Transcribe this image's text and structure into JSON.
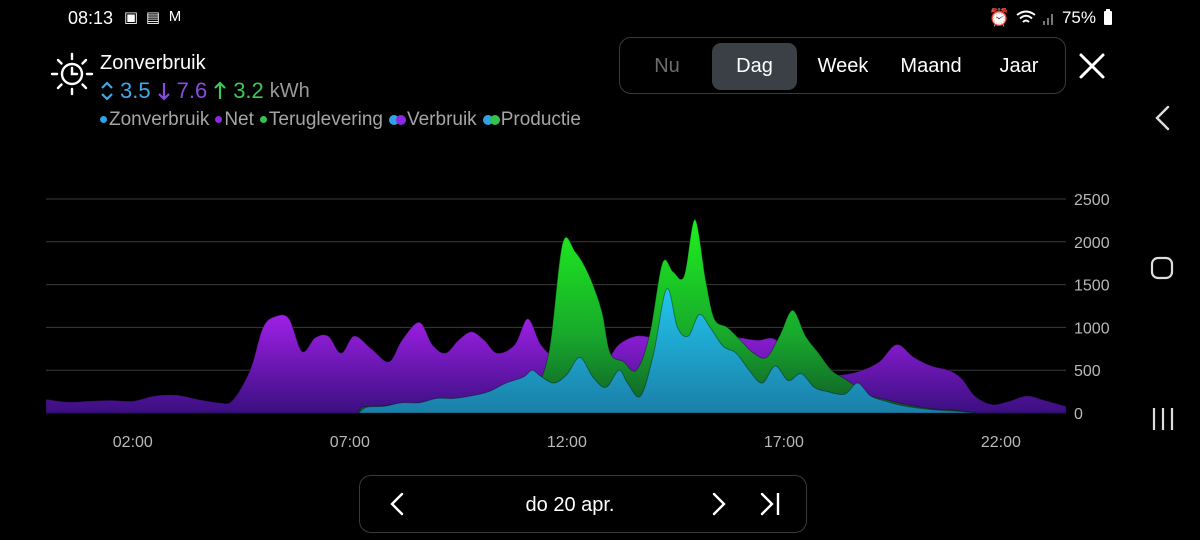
{
  "status_bar": {
    "time": "08:13",
    "notification_icons": [
      "image-icon",
      "files-icon",
      "gmail-icon"
    ],
    "right_icons": [
      "alarm-icon",
      "wifi-icon",
      "signal-icon",
      "battery-icon"
    ],
    "battery": "75%"
  },
  "card": {
    "title": "Zonverbruik",
    "icon": "sun-clock-icon",
    "values": {
      "zonverbruik": "3.5",
      "net": "7.6",
      "teruglevering": "3.2",
      "unit": "kWh"
    },
    "legend": [
      {
        "label": "Zonverbruik",
        "color": "#2fa3e6"
      },
      {
        "label": "Net",
        "color": "#8a2be2"
      },
      {
        "label": "Teruglevering",
        "color": "#35c24f"
      },
      {
        "label": "Verbruik",
        "colors": [
          "#2fa3e6",
          "#8a2be2"
        ]
      },
      {
        "label": "Productie",
        "colors": [
          "#2fa3e6",
          "#35c24f"
        ]
      }
    ]
  },
  "period_tabs": [
    {
      "label": "Nu",
      "state": "inactive"
    },
    {
      "label": "Dag",
      "state": "active"
    },
    {
      "label": "Week",
      "state": "normal"
    },
    {
      "label": "Maand",
      "state": "normal"
    },
    {
      "label": "Jaar",
      "state": "normal"
    }
  ],
  "colors": {
    "zonverbruik": "#2fb0e0",
    "net": "#8a1fd0",
    "teruglevering": "#1fdc1f",
    "grid": "#3a3a3a",
    "axis_text": "#b8b8b8"
  },
  "chart_data": {
    "type": "area",
    "yticks": [
      "2500",
      "2000",
      "1500",
      "1000",
      "500",
      "0"
    ],
    "ylim": [
      0,
      2500
    ],
    "xticks": [
      "02:00",
      "07:00",
      "12:00",
      "17:00",
      "22:00"
    ],
    "x_unit": "hour",
    "xlim": [
      0,
      23.5
    ],
    "series": [
      {
        "name": "Net",
        "points": [
          [
            0,
            160
          ],
          [
            0.5,
            130
          ],
          [
            1,
            140
          ],
          [
            1.5,
            150
          ],
          [
            2,
            140
          ],
          [
            2.5,
            200
          ],
          [
            3,
            210
          ],
          [
            3.5,
            160
          ],
          [
            4,
            120
          ],
          [
            4.3,
            150
          ],
          [
            4.7,
            500
          ],
          [
            5,
            1000
          ],
          [
            5.3,
            1130
          ],
          [
            5.6,
            1100
          ],
          [
            5.9,
            720
          ],
          [
            6.2,
            880
          ],
          [
            6.5,
            900
          ],
          [
            6.8,
            700
          ],
          [
            7.1,
            900
          ],
          [
            7.5,
            750
          ],
          [
            7.9,
            600
          ],
          [
            8.2,
            850
          ],
          [
            8.6,
            1060
          ],
          [
            8.9,
            800
          ],
          [
            9.2,
            700
          ],
          [
            9.5,
            850
          ],
          [
            9.8,
            950
          ],
          [
            10.1,
            850
          ],
          [
            10.4,
            700
          ],
          [
            10.8,
            800
          ],
          [
            11.1,
            1100
          ],
          [
            11.4,
            800
          ],
          [
            11.7,
            700
          ],
          [
            12,
            1000
          ],
          [
            12.3,
            700
          ],
          [
            12.6,
            520
          ],
          [
            12.9,
            600
          ],
          [
            13.2,
            800
          ],
          [
            13.6,
            900
          ],
          [
            14,
            880
          ],
          [
            14.4,
            860
          ],
          [
            14.8,
            880
          ],
          [
            15.2,
            880
          ],
          [
            15.6,
            900
          ],
          [
            16,
            880
          ],
          [
            16.4,
            850
          ],
          [
            16.8,
            860
          ],
          [
            17.2,
            600
          ],
          [
            17.6,
            500
          ],
          [
            18,
            450
          ],
          [
            18.4,
            450
          ],
          [
            18.8,
            500
          ],
          [
            19.2,
            600
          ],
          [
            19.6,
            800
          ],
          [
            20,
            650
          ],
          [
            20.4,
            550
          ],
          [
            20.8,
            500
          ],
          [
            21.1,
            400
          ],
          [
            21.4,
            200
          ],
          [
            21.8,
            100
          ],
          [
            22.2,
            140
          ],
          [
            22.6,
            200
          ],
          [
            23,
            150
          ],
          [
            23.5,
            80
          ]
        ]
      },
      {
        "name": "Teruglevering",
        "points": [
          [
            7.2,
            0
          ],
          [
            7.3,
            70
          ],
          [
            7.7,
            80
          ],
          [
            8.1,
            100
          ],
          [
            8.5,
            70
          ],
          [
            9,
            150
          ],
          [
            9.5,
            150
          ],
          [
            10,
            200
          ],
          [
            10.5,
            230
          ],
          [
            11,
            250
          ],
          [
            11.3,
            300
          ],
          [
            11.6,
            750
          ],
          [
            11.9,
            1980
          ],
          [
            12.2,
            1880
          ],
          [
            12.5,
            1620
          ],
          [
            12.8,
            1200
          ],
          [
            13,
            700
          ],
          [
            13.3,
            600
          ],
          [
            13.6,
            500
          ],
          [
            13.9,
            900
          ],
          [
            14.2,
            1750
          ],
          [
            14.45,
            1650
          ],
          [
            14.7,
            1600
          ],
          [
            14.95,
            2260
          ],
          [
            15.2,
            1550
          ],
          [
            15.4,
            1100
          ],
          [
            15.7,
            1000
          ],
          [
            16,
            850
          ],
          [
            16.3,
            700
          ],
          [
            16.6,
            650
          ],
          [
            16.9,
            900
          ],
          [
            17.2,
            1200
          ],
          [
            17.5,
            900
          ],
          [
            17.8,
            700
          ],
          [
            18.1,
            500
          ],
          [
            18.4,
            400
          ],
          [
            18.7,
            300
          ],
          [
            19,
            200
          ],
          [
            19.4,
            150
          ],
          [
            19.8,
            100
          ],
          [
            20.4,
            50
          ],
          [
            21,
            30
          ],
          [
            21.4,
            0
          ]
        ]
      },
      {
        "name": "Zonverbruik",
        "points": [
          [
            7.2,
            0
          ],
          [
            7.4,
            70
          ],
          [
            7.8,
            80
          ],
          [
            8.2,
            120
          ],
          [
            8.6,
            120
          ],
          [
            9,
            170
          ],
          [
            9.4,
            170
          ],
          [
            9.8,
            200
          ],
          [
            10.2,
            250
          ],
          [
            10.6,
            350
          ],
          [
            11,
            420
          ],
          [
            11.2,
            500
          ],
          [
            11.4,
            430
          ],
          [
            11.7,
            350
          ],
          [
            12,
            450
          ],
          [
            12.3,
            650
          ],
          [
            12.6,
            420
          ],
          [
            12.9,
            300
          ],
          [
            13.2,
            500
          ],
          [
            13.4,
            350
          ],
          [
            13.7,
            200
          ],
          [
            14,
            700
          ],
          [
            14.3,
            1450
          ],
          [
            14.55,
            1000
          ],
          [
            14.8,
            900
          ],
          [
            15.05,
            1150
          ],
          [
            15.3,
            1000
          ],
          [
            15.6,
            780
          ],
          [
            15.9,
            700
          ],
          [
            16.2,
            500
          ],
          [
            16.5,
            350
          ],
          [
            16.8,
            550
          ],
          [
            17.1,
            380
          ],
          [
            17.4,
            460
          ],
          [
            17.7,
            300
          ],
          [
            18,
            250
          ],
          [
            18.4,
            220
          ],
          [
            18.7,
            350
          ],
          [
            19,
            200
          ],
          [
            19.4,
            130
          ],
          [
            19.8,
            80
          ],
          [
            20.4,
            40
          ],
          [
            21,
            20
          ],
          [
            21.4,
            0
          ]
        ]
      }
    ]
  },
  "date_nav": {
    "date": "do 20 apr."
  },
  "system_nav": [
    "back",
    "home",
    "recent-apps"
  ]
}
